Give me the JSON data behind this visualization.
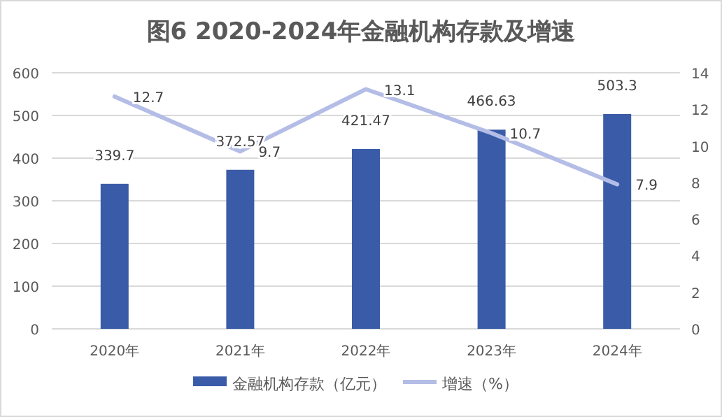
{
  "chart_data": {
    "type": "bar",
    "title": "图6 2020-2024年金融机构存款及增速",
    "categories": [
      "2020年",
      "2021年",
      "2022年",
      "2023年",
      "2024年"
    ],
    "series": [
      {
        "name": "金融机构存款（亿元）",
        "color": "#3a5ca8",
        "values": [
          339.7,
          372.57,
          421.47,
          466.63,
          503.3
        ]
      },
      {
        "name": "增速（%）",
        "type": "line",
        "axis": "y2",
        "color": "#b4bde6",
        "values": [
          12.7,
          9.7,
          13.1,
          10.7,
          7.9
        ]
      }
    ],
    "ylim": [
      0,
      600
    ],
    "yticks": [
      0,
      100,
      200,
      300,
      400,
      500,
      600
    ],
    "y2lim": [
      0,
      14
    ],
    "y2ticks": [
      0,
      2,
      4,
      6,
      8,
      10,
      12,
      14
    ],
    "grid": "y",
    "legend": "bottom",
    "data_labels": true,
    "marker": "none"
  }
}
